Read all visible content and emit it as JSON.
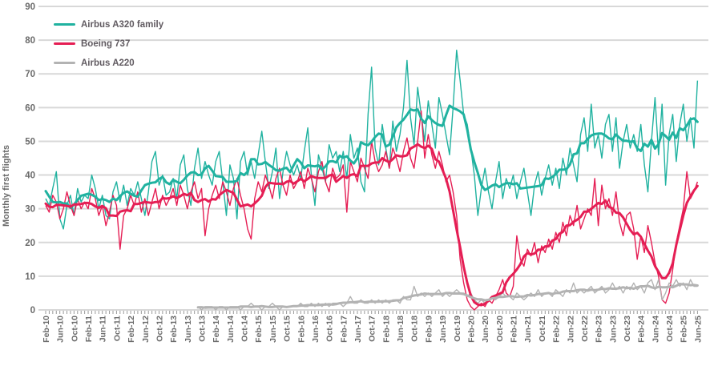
{
  "chart_data": {
    "type": "line",
    "title": "",
    "ylabel": "Monthly first flights",
    "ylim": [
      0,
      90
    ],
    "y_ticks": [
      0,
      10,
      20,
      30,
      40,
      50,
      60,
      70,
      80,
      90
    ],
    "grid": "horizontal",
    "legend_position": "top-left",
    "x_start": "Feb-10",
    "x_end": "Jun-25",
    "x_tick_labels": [
      "Feb-10",
      "Jun-10",
      "Oct-10",
      "Feb-11",
      "Jun-11",
      "Oct-11",
      "Feb-12",
      "Jun-12",
      "Oct-12",
      "Feb-13",
      "Jun-13",
      "Oct-13",
      "Feb-14",
      "Jun-14",
      "Oct-14",
      "Feb-15",
      "Jun-15",
      "Oct-15",
      "Feb-16",
      "Jun-16",
      "Oct-16",
      "Feb-17",
      "Jun-17",
      "Oct-17",
      "Feb-18",
      "Jun-18",
      "Oct-18",
      "Feb-19",
      "Jun-19",
      "Oct-19",
      "Feb-20",
      "Jun-20",
      "Oct-20",
      "Feb-21",
      "Jun-21",
      "Oct-21",
      "Feb-22",
      "Jun-22",
      "Oct-22",
      "Feb-23",
      "Jun-23",
      "Oct-23",
      "Feb-24",
      "Jun-24",
      "Oct-24",
      "Feb-25",
      "Jun-25"
    ],
    "x_tick_step_months": 4,
    "note": "each series shows a thin monthly line plus a thick rolling-average trend line",
    "series": [
      {
        "name": "Airbus A320 family",
        "color": "#20b2a0",
        "values": [
          33,
          31,
          36,
          41,
          27,
          24,
          31,
          34,
          28,
          36,
          32,
          34,
          33,
          40,
          36,
          30,
          34,
          28,
          27,
          35,
          38,
          32,
          37,
          31,
          36,
          34,
          38,
          33,
          28,
          35,
          44,
          47,
          37,
          40,
          34,
          35,
          39,
          33,
          43,
          46,
          36,
          31,
          42,
          48,
          39,
          44,
          40,
          37,
          44,
          47,
          38,
          28,
          43,
          39,
          27,
          44,
          47,
          40,
          44,
          39,
          46,
          53,
          44,
          36,
          41,
          48,
          33,
          41,
          47,
          43,
          40,
          43,
          39,
          47,
          54,
          40,
          31,
          46,
          42,
          38,
          49,
          45,
          47,
          41,
          47,
          39,
          52,
          45,
          48,
          38,
          35,
          58,
          72,
          48,
          43,
          55,
          48,
          42,
          56,
          47,
          52,
          60,
          74,
          57,
          49,
          66,
          58,
          50,
          62,
          55,
          48,
          63,
          58,
          52,
          46,
          60,
          77,
          68,
          58,
          55,
          48,
          40,
          28,
          36,
          42,
          35,
          30,
          38,
          44,
          33,
          39,
          36,
          40,
          33,
          38,
          42,
          35,
          28,
          37,
          41,
          34,
          39,
          43,
          37,
          42,
          36,
          45,
          40,
          48,
          43,
          38,
          52,
          57,
          47,
          61,
          48,
          52,
          45,
          55,
          58,
          47,
          57,
          42,
          50,
          55,
          48,
          52,
          47,
          55,
          43,
          35,
          50,
          63,
          46,
          61,
          37,
          52,
          58,
          44,
          55,
          61,
          50,
          57,
          48,
          68
        ]
      },
      {
        "name": "Boeing 737",
        "color": "#e51e54",
        "values": [
          31,
          29,
          34,
          32,
          27,
          30,
          35,
          31,
          28,
          33,
          30,
          32,
          30,
          36,
          33,
          28,
          31,
          25,
          29,
          34,
          31,
          18,
          28,
          30,
          34,
          31,
          35,
          29,
          33,
          28,
          32,
          36,
          30,
          34,
          31,
          33,
          36,
          31,
          37,
          34,
          30,
          35,
          38,
          33,
          36,
          22,
          30,
          34,
          37,
          33,
          38,
          35,
          31,
          36,
          39,
          34,
          30,
          24,
          21,
          33,
          38,
          35,
          40,
          37,
          33,
          39,
          42,
          37,
          34,
          40,
          36,
          38,
          41,
          36,
          42,
          39,
          35,
          41,
          44,
          38,
          35,
          42,
          39,
          40,
          43,
          29,
          44,
          41,
          38,
          45,
          42,
          39,
          50,
          44,
          41,
          43,
          47,
          42,
          48,
          45,
          41,
          47,
          51,
          45,
          42,
          50,
          59,
          45,
          52,
          46,
          42,
          47,
          43,
          38,
          40,
          35,
          28,
          15,
          8,
          3,
          1,
          0,
          1,
          2,
          1,
          3,
          2,
          4,
          6,
          9,
          5,
          4,
          7,
          22,
          15,
          13,
          18,
          16,
          20,
          14,
          19,
          17,
          21,
          18,
          23,
          20,
          26,
          22,
          28,
          25,
          31,
          24,
          27,
          30,
          28,
          39,
          25,
          37,
          30,
          33,
          28,
          35,
          26,
          22,
          28,
          29,
          24,
          15,
          22,
          17,
          25,
          20,
          14,
          10,
          3,
          2,
          5,
          12,
          20,
          25,
          30,
          41,
          33,
          35,
          38
        ]
      },
      {
        "name": "Airbus A220",
        "color": "#b3b3b3",
        "values": [
          null,
          null,
          null,
          null,
          null,
          null,
          null,
          null,
          null,
          null,
          null,
          null,
          null,
          null,
          null,
          null,
          null,
          null,
          null,
          null,
          null,
          null,
          null,
          null,
          null,
          null,
          null,
          null,
          null,
          null,
          null,
          null,
          null,
          null,
          null,
          null,
          null,
          null,
          null,
          null,
          null,
          null,
          null,
          1,
          0,
          1,
          1,
          1,
          0,
          1,
          1,
          0,
          1,
          1,
          1,
          0,
          1,
          1,
          2,
          1,
          1,
          0,
          1,
          1,
          2,
          1,
          0,
          1,
          1,
          1,
          1,
          1,
          2,
          1,
          1,
          2,
          1,
          2,
          1,
          2,
          1,
          2,
          2,
          2,
          1,
          2,
          4,
          2,
          2,
          3,
          2,
          2,
          3,
          2,
          3,
          2,
          3,
          2,
          3,
          3,
          2,
          4,
          3,
          3,
          7,
          4,
          5,
          4,
          5,
          4,
          5,
          6,
          4,
          5,
          4,
          5,
          6,
          5,
          5,
          4,
          5,
          3,
          2,
          3,
          2,
          3,
          4,
          3,
          4,
          5,
          4,
          4,
          3,
          5,
          4,
          3,
          4,
          5,
          4,
          6,
          4,
          5,
          5,
          4,
          6,
          5,
          4,
          6,
          5,
          8,
          5,
          6,
          5,
          6,
          7,
          5,
          6,
          7,
          5,
          6,
          8,
          6,
          7,
          5,
          7,
          6,
          8,
          6,
          7,
          5,
          8,
          9,
          6,
          9,
          3,
          5,
          8,
          7,
          9,
          7,
          8,
          6,
          9,
          7,
          7
        ]
      }
    ]
  },
  "colors": {
    "grid": "#d8d8d8",
    "tick": "#9a9a9a",
    "text": "#6a6a6a",
    "background": "#ffffff"
  }
}
